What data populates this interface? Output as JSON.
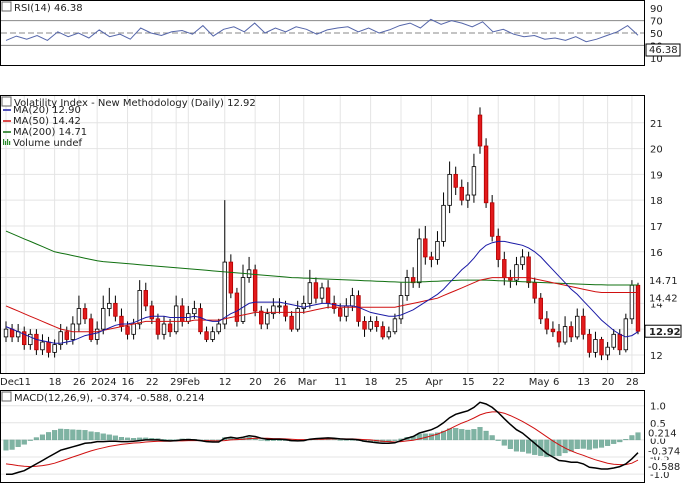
{
  "chart_data": [
    {
      "type": "line",
      "pane": "rsi",
      "title": "RSI(14) 46.38",
      "last_value_label": "46.38",
      "ylim": [
        0,
        100
      ],
      "y_ticks": [
        90,
        70,
        50,
        30,
        10
      ],
      "reference_lines": [
        70,
        50,
        30
      ],
      "series": [
        {
          "name": "RSI(14)",
          "color": "#5566aa",
          "values": [
            38,
            45,
            40,
            46,
            38,
            52,
            44,
            50,
            42,
            55,
            44,
            48,
            40,
            58,
            50,
            46,
            52,
            54,
            48,
            62,
            45,
            56,
            60,
            52,
            66,
            50,
            58,
            52,
            60,
            56,
            48,
            55,
            58,
            60,
            52,
            58,
            50,
            55,
            62,
            66,
            58,
            72,
            64,
            70,
            66,
            60,
            68,
            52,
            56,
            48,
            44,
            46,
            40,
            42,
            38,
            44,
            36,
            40,
            46,
            52,
            62,
            46.38
          ]
        }
      ]
    },
    {
      "type": "candlestick",
      "pane": "price",
      "title": "Volatility Index - New Methodology (Daily) 12.92",
      "legend": [
        {
          "label": "MA(20) 12.90",
          "color": "#1a1aa6"
        },
        {
          "label": "MA(50) 14.42",
          "color": "#d01010"
        },
        {
          "label": "MA(200) 14.71",
          "color": "#107010"
        },
        {
          "label": "Volume undef",
          "color": "#2a8a2a"
        }
      ],
      "ylim": [
        11.3,
        22
      ],
      "y_ticks": [
        12,
        13,
        14,
        15,
        16,
        17,
        18,
        19,
        20,
        21
      ],
      "x_tick_labels": [
        {
          "i": 0,
          "label": "Dec"
        },
        {
          "i": 3,
          "label": "11"
        },
        {
          "i": 8,
          "label": "18"
        },
        {
          "i": 12,
          "label": "26"
        },
        {
          "i": 15,
          "label": "2024"
        },
        {
          "i": 20,
          "label": "16"
        },
        {
          "i": 24,
          "label": "22"
        },
        {
          "i": 28,
          "label": "29"
        },
        {
          "i": 30,
          "label": "Feb"
        },
        {
          "i": 36,
          "label": "12"
        },
        {
          "i": 41,
          "label": "20"
        },
        {
          "i": 45,
          "label": "26"
        },
        {
          "i": 49,
          "label": "Mar"
        },
        {
          "i": 55,
          "label": "11"
        },
        {
          "i": 60,
          "label": "18"
        },
        {
          "i": 65,
          "label": "25"
        },
        {
          "i": 70,
          "label": "Apr"
        },
        {
          "i": 76,
          "label": "15"
        },
        {
          "i": 81,
          "label": "22"
        },
        {
          "i": 87,
          "label": "May"
        },
        {
          "i": 91,
          "label": "6"
        },
        {
          "i": 95,
          "label": "13"
        },
        {
          "i": 99,
          "label": "20"
        },
        {
          "i": 103,
          "label": "28"
        }
      ],
      "price_labels": [
        {
          "value": 14.71,
          "label": "14.71",
          "color": "#107010"
        },
        {
          "value": 14.42,
          "label": "14.42",
          "color": "#d01010"
        },
        {
          "value": 12.92,
          "label": "12.92",
          "color": "#000000"
        }
      ],
      "closes": [
        13.0,
        12.7,
        12.9,
        12.4,
        12.8,
        12.2,
        12.5,
        12.1,
        12.4,
        12.9,
        12.6,
        13.2,
        13.8,
        13.4,
        12.6,
        13.0,
        13.8,
        14.0,
        13.5,
        13.1,
        12.8,
        13.2,
        14.5,
        13.9,
        13.4,
        12.8,
        13.2,
        12.9,
        13.9,
        13.3,
        13.6,
        13.8,
        12.9,
        12.6,
        12.9,
        13.2,
        15.6,
        14.4,
        13.3,
        15.0,
        15.3,
        13.7,
        13.2,
        13.6,
        13.9,
        13.9,
        13.5,
        13.0,
        13.8,
        14.0,
        14.8,
        14.2,
        14.6,
        14.0,
        13.8,
        13.5,
        13.9,
        14.3,
        13.3,
        13.0,
        13.3,
        13.1,
        12.7,
        12.9,
        13.4,
        14.3,
        15.0,
        14.8,
        16.5,
        15.8,
        15.7,
        16.4,
        17.8,
        19.0,
        18.5,
        18.0,
        18.2,
        19.3,
        20.1,
        17.9,
        16.6,
        15.7,
        15.0,
        14.9,
        15.5,
        15.8,
        14.8,
        14.2,
        13.4,
        13.0,
        12.9,
        12.5,
        13.1,
        12.7,
        13.5,
        12.8,
        12.1,
        12.6,
        12.0,
        12.3,
        12.8,
        12.2,
        13.4,
        14.7,
        12.92
      ],
      "opens": [
        12.7,
        13.0,
        12.7,
        12.9,
        12.4,
        12.8,
        12.2,
        12.5,
        12.1,
        12.4,
        12.9,
        12.6,
        13.2,
        13.8,
        13.4,
        12.6,
        13.0,
        13.8,
        14.0,
        13.5,
        13.1,
        12.8,
        13.2,
        14.5,
        13.9,
        13.4,
        12.8,
        13.2,
        12.9,
        13.9,
        13.3,
        13.6,
        13.8,
        12.9,
        12.6,
        12.9,
        13.2,
        15.6,
        14.4,
        13.3,
        15.0,
        15.3,
        13.7,
        13.2,
        13.6,
        13.9,
        13.9,
        13.5,
        13.0,
        13.8,
        14.0,
        14.8,
        14.2,
        14.6,
        14.0,
        13.8,
        13.5,
        13.9,
        14.3,
        13.3,
        13.0,
        13.3,
        13.1,
        12.7,
        12.9,
        13.4,
        14.3,
        15.0,
        14.8,
        16.5,
        15.8,
        15.7,
        16.4,
        17.8,
        19.0,
        18.5,
        18.0,
        18.2,
        21.3,
        20.1,
        17.9,
        16.6,
        15.7,
        15.0,
        14.9,
        15.5,
        15.8,
        14.8,
        14.2,
        13.4,
        13.0,
        12.9,
        12.5,
        13.1,
        12.7,
        13.5,
        12.8,
        12.1,
        12.6,
        12.0,
        12.3,
        12.8,
        12.2,
        13.4,
        14.7
      ],
      "highs": [
        13.3,
        13.2,
        13.2,
        13.1,
        13.0,
        13.0,
        12.8,
        12.7,
        12.6,
        13.2,
        13.1,
        13.5,
        14.3,
        14.0,
        13.6,
        13.3,
        14.3,
        14.6,
        14.3,
        13.8,
        13.3,
        13.4,
        14.9,
        14.8,
        14.1,
        13.6,
        13.5,
        13.4,
        14.3,
        14.2,
        13.9,
        14.1,
        14.0,
        13.1,
        13.1,
        13.4,
        18.0,
        15.9,
        14.6,
        15.5,
        15.8,
        15.5,
        13.9,
        13.8,
        14.2,
        14.2,
        14.1,
        13.7,
        14.1,
        14.3,
        15.3,
        15.0,
        14.8,
        14.9,
        14.3,
        14.0,
        14.2,
        14.6,
        14.5,
        13.5,
        13.5,
        13.5,
        13.3,
        13.1,
        13.6,
        14.8,
        15.3,
        15.4,
        16.9,
        17.0,
        16.0,
        16.8,
        18.3,
        19.5,
        19.3,
        18.8,
        18.7,
        19.8,
        21.6,
        20.4,
        18.2,
        16.9,
        16.0,
        15.3,
        15.8,
        16.1,
        16.0,
        15.0,
        14.4,
        13.7,
        13.3,
        13.2,
        13.5,
        13.3,
        13.8,
        13.8,
        13.0,
        12.9,
        12.7,
        12.5,
        13.0,
        13.0,
        13.6,
        14.9,
        14.8
      ],
      "lows": [
        12.5,
        12.5,
        12.5,
        12.2,
        12.2,
        12.0,
        12.0,
        11.9,
        11.9,
        12.2,
        12.4,
        12.4,
        12.9,
        13.2,
        12.5,
        12.4,
        12.8,
        13.5,
        13.3,
        12.9,
        12.6,
        12.6,
        13.0,
        13.7,
        13.2,
        12.6,
        12.6,
        12.7,
        12.8,
        13.1,
        13.2,
        13.4,
        12.8,
        12.5,
        12.5,
        12.8,
        13.0,
        14.2,
        13.1,
        13.2,
        14.8,
        13.5,
        13.0,
        13.0,
        13.4,
        13.6,
        13.3,
        12.9,
        12.9,
        13.6,
        13.8,
        14.0,
        14.0,
        13.8,
        13.6,
        13.3,
        13.3,
        13.7,
        13.1,
        12.7,
        12.9,
        12.9,
        12.6,
        12.6,
        12.8,
        13.2,
        14.1,
        14.6,
        14.6,
        15.5,
        15.4,
        15.5,
        16.2,
        17.5,
        18.2,
        17.8,
        17.7,
        17.9,
        19.8,
        17.7,
        16.4,
        15.4,
        14.7,
        14.6,
        14.7,
        15.3,
        14.6,
        14.0,
        13.2,
        12.8,
        12.7,
        12.3,
        12.4,
        12.5,
        12.6,
        12.6,
        11.9,
        11.9,
        11.8,
        11.8,
        12.2,
        12.0,
        12.1,
        13.2,
        12.8
      ],
      "ma20": [
        13.1,
        13.0,
        12.9,
        12.8,
        12.7,
        12.6,
        12.55,
        12.5,
        12.45,
        12.45,
        12.5,
        12.55,
        12.65,
        12.75,
        12.8,
        12.85,
        12.95,
        13.05,
        13.15,
        13.2,
        13.2,
        13.25,
        13.35,
        13.45,
        13.5,
        13.5,
        13.5,
        13.45,
        13.45,
        13.45,
        13.45,
        13.5,
        13.45,
        13.35,
        13.3,
        13.3,
        13.45,
        13.6,
        13.7,
        13.85,
        14.0,
        14.05,
        14.05,
        14.05,
        14.05,
        14.05,
        14.0,
        13.95,
        13.9,
        13.85,
        13.9,
        13.95,
        14.0,
        14.0,
        13.95,
        13.9,
        13.9,
        13.9,
        13.85,
        13.75,
        13.65,
        13.6,
        13.55,
        13.5,
        13.5,
        13.55,
        13.65,
        13.75,
        13.9,
        14.05,
        14.2,
        14.35,
        14.55,
        14.8,
        15.05,
        15.3,
        15.5,
        15.75,
        16.05,
        16.25,
        16.35,
        16.4,
        16.4,
        16.35,
        16.3,
        16.25,
        16.15,
        16.0,
        15.8,
        15.55,
        15.3,
        15.05,
        14.8,
        14.55,
        14.35,
        14.1,
        13.85,
        13.6,
        13.35,
        13.15,
        12.95,
        12.8,
        12.7,
        12.75,
        12.9
      ],
      "ma50": [
        13.9,
        13.8,
        13.7,
        13.6,
        13.5,
        13.4,
        13.3,
        13.2,
        13.1,
        13.0,
        12.95,
        12.9,
        12.9,
        12.9,
        12.9,
        12.9,
        12.95,
        13.0,
        13.05,
        13.1,
        13.15,
        13.2,
        13.25,
        13.3,
        13.3,
        13.3,
        13.3,
        13.3,
        13.3,
        13.3,
        13.3,
        13.35,
        13.35,
        13.35,
        13.35,
        13.35,
        13.4,
        13.45,
        13.5,
        13.55,
        13.6,
        13.65,
        13.65,
        13.65,
        13.65,
        13.65,
        13.65,
        13.65,
        13.65,
        13.65,
        13.7,
        13.75,
        13.8,
        13.85,
        13.85,
        13.85,
        13.85,
        13.85,
        13.85,
        13.85,
        13.85,
        13.85,
        13.85,
        13.85,
        13.85,
        13.9,
        13.95,
        14.0,
        14.05,
        14.1,
        14.15,
        14.2,
        14.3,
        14.4,
        14.5,
        14.6,
        14.7,
        14.8,
        14.9,
        14.95,
        15.0,
        15.0,
        15.0,
        15.0,
        15.0,
        15.0,
        15.0,
        14.95,
        14.9,
        14.85,
        14.8,
        14.75,
        14.7,
        14.65,
        14.6,
        14.55,
        14.5,
        14.45,
        14.42,
        14.42,
        14.42,
        14.42,
        14.42,
        14.42,
        14.42
      ],
      "ma200": [
        16.8,
        16.7,
        16.6,
        16.5,
        16.4,
        16.3,
        16.2,
        16.1,
        16.0,
        15.95,
        15.9,
        15.85,
        15.8,
        15.75,
        15.7,
        15.65,
        15.62,
        15.6,
        15.58,
        15.56,
        15.54,
        15.52,
        15.5,
        15.48,
        15.46,
        15.44,
        15.42,
        15.4,
        15.38,
        15.36,
        15.34,
        15.32,
        15.3,
        15.28,
        15.26,
        15.24,
        15.22,
        15.2,
        15.18,
        15.16,
        15.14,
        15.12,
        15.1,
        15.08,
        15.06,
        15.04,
        15.02,
        15.0,
        14.99,
        14.98,
        14.97,
        14.96,
        14.95,
        14.94,
        14.93,
        14.92,
        14.91,
        14.9,
        14.89,
        14.88,
        14.87,
        14.86,
        14.85,
        14.84,
        14.83,
        14.82,
        14.82,
        14.82,
        14.83,
        14.84,
        14.85,
        14.86,
        14.87,
        14.88,
        14.89,
        14.9,
        14.9,
        14.9,
        14.9,
        14.9,
        14.89,
        14.88,
        14.87,
        14.86,
        14.85,
        14.84,
        14.83,
        14.82,
        14.81,
        14.8,
        14.79,
        14.78,
        14.77,
        14.76,
        14.75,
        14.74,
        14.73,
        14.72,
        14.72,
        14.71,
        14.71,
        14.71,
        14.71,
        14.71,
        14.71
      ]
    },
    {
      "type": "line",
      "pane": "macd",
      "title": "MACD(12,26,9) -0.374, -0.588, 0.214",
      "legend_values": [
        "MACD(12,26,9)",
        "-0.374",
        "-0.588",
        "0.214"
      ],
      "ylim": [
        -1.2,
        1.4
      ],
      "y_ticks": [
        1.0,
        0.5,
        0.0,
        -0.5,
        -1.0
      ],
      "value_labels": [
        {
          "value": 0.214,
          "label": "0.214",
          "color": "#2a8a6a"
        },
        {
          "value": -0.374,
          "label": "-0.374",
          "color": "#000000"
        },
        {
          "value": -0.588,
          "label": "-0.588",
          "color": "#d01010"
        }
      ],
      "series": [
        {
          "name": "MACD",
          "color": "#000000",
          "values": [
            -1.0,
            -1.0,
            -0.95,
            -0.9,
            -0.8,
            -0.7,
            -0.6,
            -0.5,
            -0.4,
            -0.3,
            -0.25,
            -0.2,
            -0.15,
            -0.1,
            -0.08,
            -0.05,
            -0.05,
            -0.04,
            -0.04,
            -0.05,
            -0.05,
            -0.04,
            -0.02,
            0.0,
            0.0,
            0.0,
            -0.02,
            -0.03,
            -0.02,
            0.0,
            0.01,
            0.0,
            -0.02,
            -0.05,
            -0.06,
            -0.06,
            0.05,
            0.08,
            0.05,
            0.08,
            0.12,
            0.1,
            0.05,
            0.02,
            0.02,
            0.02,
            0.01,
            -0.02,
            -0.03,
            -0.02,
            0.02,
            0.04,
            0.05,
            0.06,
            0.05,
            0.03,
            0.02,
            0.02,
            0.0,
            -0.04,
            -0.06,
            -0.08,
            -0.1,
            -0.1,
            -0.08,
            -0.02,
            0.05,
            0.1,
            0.2,
            0.25,
            0.3,
            0.38,
            0.5,
            0.65,
            0.75,
            0.8,
            0.85,
            0.95,
            1.1,
            1.05,
            0.95,
            0.8,
            0.62,
            0.45,
            0.3,
            0.2,
            0.05,
            -0.1,
            -0.25,
            -0.4,
            -0.5,
            -0.6,
            -0.62,
            -0.65,
            -0.65,
            -0.7,
            -0.8,
            -0.82,
            -0.85,
            -0.85,
            -0.82,
            -0.78,
            -0.7,
            -0.55,
            -0.374
          ]
        },
        {
          "name": "Signal",
          "color": "#d01010",
          "values": [
            -0.7,
            -0.72,
            -0.75,
            -0.77,
            -0.78,
            -0.77,
            -0.75,
            -0.72,
            -0.68,
            -0.62,
            -0.56,
            -0.5,
            -0.44,
            -0.38,
            -0.32,
            -0.27,
            -0.23,
            -0.19,
            -0.16,
            -0.13,
            -0.11,
            -0.09,
            -0.08,
            -0.06,
            -0.05,
            -0.04,
            -0.04,
            -0.04,
            -0.03,
            -0.03,
            -0.02,
            -0.02,
            -0.02,
            -0.02,
            -0.03,
            -0.03,
            -0.02,
            0.0,
            0.01,
            0.02,
            0.04,
            0.05,
            0.05,
            0.05,
            0.04,
            0.04,
            0.03,
            0.02,
            0.01,
            0.01,
            0.01,
            0.02,
            0.02,
            0.03,
            0.03,
            0.03,
            0.03,
            0.03,
            0.02,
            0.01,
            0.0,
            -0.02,
            -0.04,
            -0.05,
            -0.06,
            -0.05,
            -0.03,
            -0.01,
            0.03,
            0.07,
            0.12,
            0.17,
            0.24,
            0.32,
            0.41,
            0.49,
            0.56,
            0.64,
            0.73,
            0.79,
            0.82,
            0.82,
            0.78,
            0.71,
            0.63,
            0.54,
            0.44,
            0.33,
            0.21,
            0.09,
            -0.03,
            -0.14,
            -0.24,
            -0.32,
            -0.39,
            -0.45,
            -0.52,
            -0.58,
            -0.63,
            -0.68,
            -0.71,
            -0.72,
            -0.72,
            -0.68,
            -0.588
          ]
        }
      ]
    }
  ]
}
